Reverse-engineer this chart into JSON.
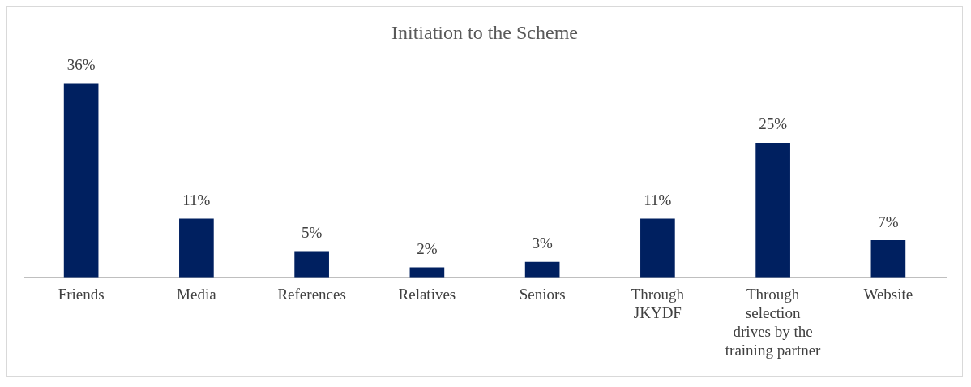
{
  "chart_data": {
    "type": "bar",
    "title": "Initiation to the Scheme",
    "categories": [
      "Friends",
      "Media",
      "References",
      "Relatives",
      "Seniors",
      "Through JKYDF",
      "Through selection drives by the training partner",
      "Website"
    ],
    "values": [
      36,
      11,
      5,
      2,
      3,
      11,
      25,
      7
    ],
    "value_labels": [
      "36%",
      "11%",
      "5%",
      "2%",
      "3%",
      "11%",
      "25%",
      "7%"
    ],
    "color": "#002060",
    "grid": false,
    "legend": false
  }
}
